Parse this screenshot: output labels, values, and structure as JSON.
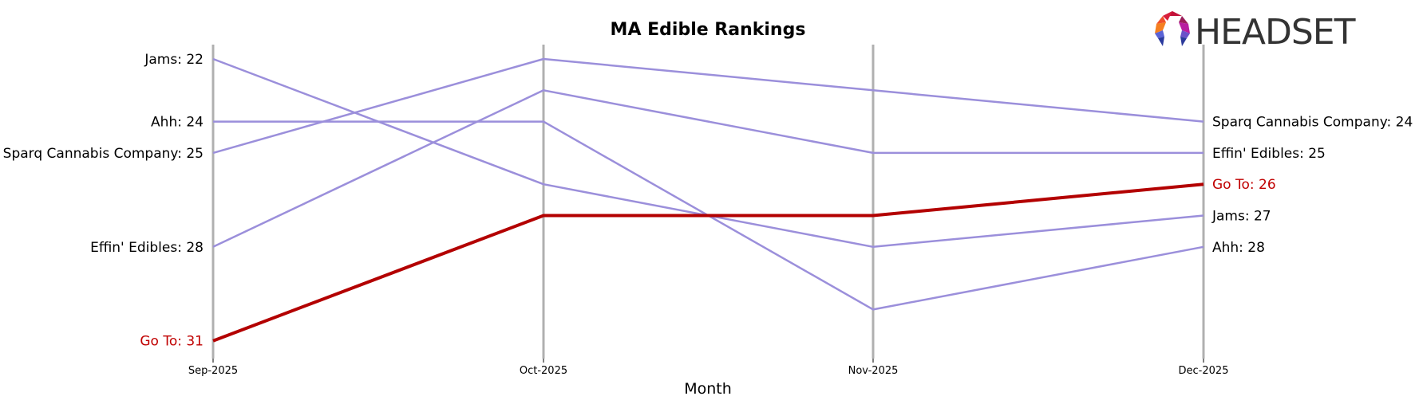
{
  "chart_data": {
    "type": "line",
    "subtype": "bump-chart",
    "title": "MA Edible Rankings",
    "xlabel": "Month",
    "ylabel": "",
    "categories": [
      "Sep-2025",
      "Oct-2025",
      "Nov-2025",
      "Dec-2025"
    ],
    "y_inverted": true,
    "ylim": [
      22,
      31
    ],
    "grid": "vertical lines at each month",
    "legend": "none (inline start/end labels)",
    "series": [
      {
        "name": "Jams",
        "values": [
          22,
          26,
          28,
          27
        ],
        "color": "#9b8fdb",
        "highlight": false
      },
      {
        "name": "Ahh",
        "values": [
          24,
          24,
          30,
          28
        ],
        "color": "#9b8fdb",
        "highlight": false
      },
      {
        "name": "Sparq Cannabis Company",
        "values": [
          25,
          22,
          23,
          24
        ],
        "color": "#9b8fdb",
        "highlight": false
      },
      {
        "name": "Effin' Edibles",
        "values": [
          28,
          23,
          25,
          25
        ],
        "color": "#9b8fdb",
        "highlight": false
      },
      {
        "name": "Go To",
        "values": [
          31,
          27,
          27,
          26
        ],
        "color": "#b30000",
        "highlight": true
      }
    ],
    "start_labels": [
      {
        "text": "Jams: 22",
        "rank": 22,
        "color": "#000000"
      },
      {
        "text": "Ahh: 24",
        "rank": 24,
        "color": "#000000"
      },
      {
        "text": "Sparq Cannabis Company: 25",
        "rank": 25,
        "color": "#000000"
      },
      {
        "text": "Effin' Edibles: 28",
        "rank": 28,
        "color": "#000000"
      },
      {
        "text": "Go To: 31",
        "rank": 31,
        "color": "#c00000"
      }
    ],
    "end_labels": [
      {
        "text": "Sparq Cannabis Company: 24",
        "rank": 24,
        "color": "#000000"
      },
      {
        "text": "Effin' Edibles: 25",
        "rank": 25,
        "color": "#000000"
      },
      {
        "text": "Go To: 26",
        "rank": 26,
        "color": "#c00000"
      },
      {
        "text": "Jams: 27",
        "rank": 27,
        "color": "#000000"
      },
      {
        "text": "Ahh: 28",
        "rank": 28,
        "color": "#000000"
      }
    ]
  },
  "logo": {
    "text": "HEADSET"
  },
  "colors": {
    "muted_line": "#9b8fdb",
    "highlight_line": "#b30000",
    "highlight_label": "#c00000",
    "gridline": "#b0b0b0"
  }
}
